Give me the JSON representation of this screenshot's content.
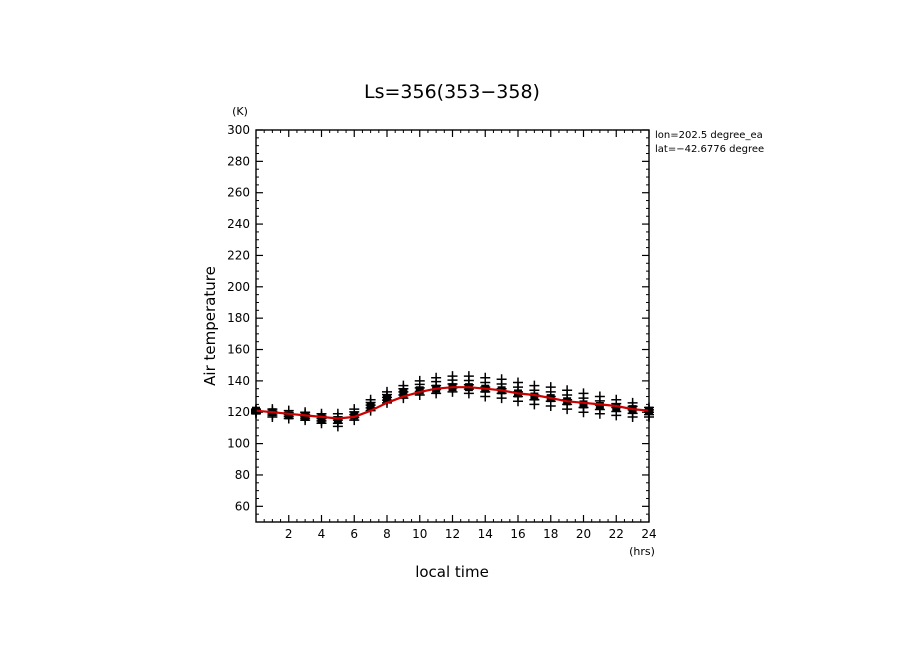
{
  "chart_data": {
    "type": "scatter",
    "title": "Ls=356(353−358)",
    "xlabel": "local time",
    "ylabel": "Air temperature",
    "x_unit": "(hrs)",
    "y_unit": "(K)",
    "xlim": [
      0,
      24
    ],
    "ylim": [
      50,
      300
    ],
    "x_ticks": [
      2,
      4,
      6,
      8,
      10,
      12,
      14,
      16,
      18,
      20,
      22,
      24
    ],
    "y_ticks": [
      60,
      80,
      100,
      120,
      140,
      160,
      180,
      200,
      220,
      240,
      260,
      280,
      300
    ],
    "annotations": [
      "lon=202.5 degree_ea",
      "lat=−42.6776 degree"
    ],
    "colors": {
      "points": "#000000",
      "mean_line": "#cc0000"
    },
    "series": [
      {
        "style": "plus",
        "x": [
          0,
          1,
          2,
          3,
          4,
          5,
          6,
          7,
          8,
          9,
          10,
          11,
          12,
          13,
          14,
          15,
          16,
          17,
          18,
          19,
          20,
          21,
          22,
          23,
          24
        ],
        "values_high": [
          122,
          122,
          121,
          120,
          119,
          119,
          122,
          128,
          133,
          137,
          140,
          142,
          143,
          143,
          142,
          141,
          139,
          137,
          136,
          134,
          132,
          130,
          128,
          126,
          123
        ],
        "values_low": [
          119,
          117,
          116,
          115,
          113,
          111,
          115,
          121,
          126,
          129,
          131,
          132,
          133,
          132,
          130,
          129,
          127,
          125,
          124,
          122,
          120,
          119,
          118,
          117,
          117
        ]
      },
      {
        "style": "square",
        "x": [
          0,
          1,
          2,
          3,
          4,
          5,
          6,
          7,
          8,
          9,
          10,
          11,
          12,
          13,
          14,
          15,
          16,
          17,
          18,
          19,
          20,
          21,
          22,
          23,
          24
        ],
        "values": [
          121,
          120,
          118,
          117,
          116,
          115,
          118,
          124,
          129,
          132,
          134,
          135,
          136,
          136,
          135,
          134,
          132,
          130,
          129,
          127,
          125,
          124,
          123,
          122,
          121
        ]
      },
      {
        "style": "line",
        "x": [
          0,
          1,
          2,
          3,
          4,
          5,
          6,
          7,
          8,
          9,
          10,
          11,
          12,
          13,
          14,
          15,
          16,
          17,
          18,
          19,
          20,
          21,
          22,
          23,
          24
        ],
        "values": [
          121,
          120,
          119,
          118,
          117,
          116,
          117,
          121,
          126,
          130,
          133,
          135,
          136,
          136,
          135,
          134,
          132,
          131,
          129,
          127,
          126,
          125,
          124,
          122,
          121
        ]
      }
    ]
  }
}
